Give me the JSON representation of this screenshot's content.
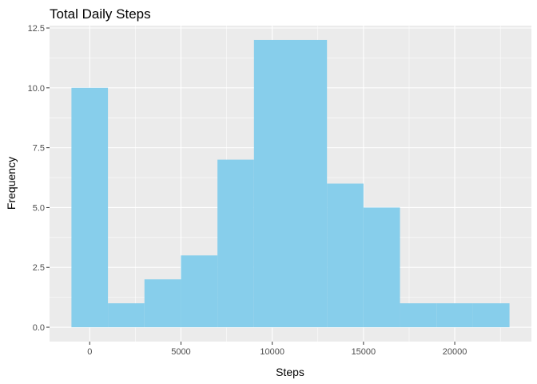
{
  "chart_data": {
    "type": "bar",
    "title": "Total Daily Steps",
    "xlabel": "Steps",
    "ylabel": "Frequency",
    "bin_width": 2000,
    "bins": [
      {
        "center": 0,
        "count": 10
      },
      {
        "center": 2000,
        "count": 1
      },
      {
        "center": 4000,
        "count": 2
      },
      {
        "center": 6000,
        "count": 3
      },
      {
        "center": 8000,
        "count": 7
      },
      {
        "center": 10000,
        "count": 12
      },
      {
        "center": 12000,
        "count": 12
      },
      {
        "center": 14000,
        "count": 6
      },
      {
        "center": 16000,
        "count": 5
      },
      {
        "center": 18000,
        "count": 1
      },
      {
        "center": 20000,
        "count": 1
      },
      {
        "center": 22000,
        "count": 1
      }
    ],
    "xlim": [
      -2200,
      24200
    ],
    "ylim": [
      -0.6,
      12.6
    ],
    "x_ticks": [
      0,
      5000,
      10000,
      15000,
      20000
    ],
    "x_tick_labels": [
      "0",
      "5000",
      "10000",
      "15000",
      "20000"
    ],
    "y_ticks": [
      0,
      2.5,
      5,
      7.5,
      10,
      12.5
    ],
    "y_tick_labels": [
      "0.0",
      "2.5",
      "5.0",
      "7.5",
      "10.0",
      "12.5"
    ],
    "grid": true,
    "legend": "none",
    "bar_color": "#87ceeb",
    "panel_color": "#ebebeb"
  }
}
